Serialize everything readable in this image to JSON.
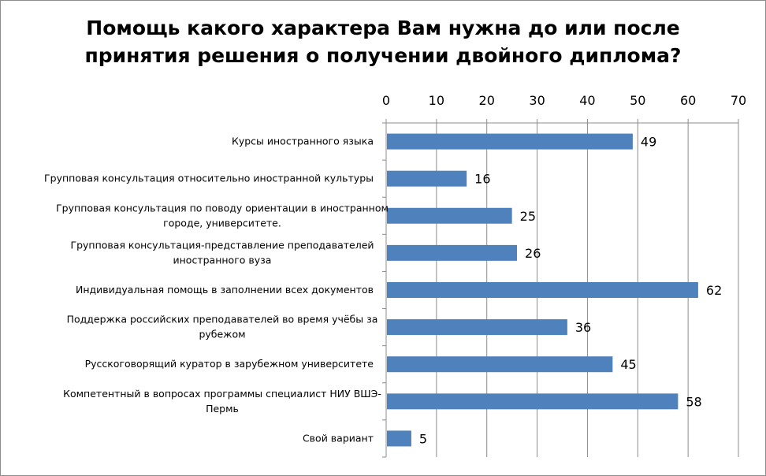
{
  "chart_data": {
    "type": "bar",
    "orientation": "horizontal",
    "title": "Помощь какого характера Вам нужна до или после принятия решения о получении двойного диплома?",
    "title_lines": [
      "Помощь какого характера Вам нужна до или после",
      "принятия решения о получении двойного диплома?"
    ],
    "categories": [
      [
        "Курсы иностранного языка"
      ],
      [
        "Групповая консультация относительно иностранной культуры"
      ],
      [
        "Групповая консультация по поводу ориентации в иностранном",
        "городе, университете."
      ],
      [
        "Групповая консультация-представление преподавателей",
        "иностранного вуза"
      ],
      [
        "Индивидуальная помощь в заполнении всех документов"
      ],
      [
        "Поддержка российских преподавателей во время учёбы за",
        "рубежом"
      ],
      [
        "Русскоговорящий куратор в зарубежном университете"
      ],
      [
        "Компетентный в вопросах программы специалист НИУ ВШЭ-",
        "Пермь"
      ],
      [
        "Свой вариант"
      ]
    ],
    "values": [
      49,
      16,
      25,
      26,
      62,
      36,
      45,
      58,
      5
    ],
    "xlim": [
      0,
      70
    ],
    "ticks": [
      0,
      10,
      20,
      30,
      40,
      50,
      60,
      70
    ],
    "axis_position": "top",
    "grid": true,
    "data_labels": true,
    "bar_color": "#4f81bd",
    "grid_color": "#8c8c8c"
  }
}
